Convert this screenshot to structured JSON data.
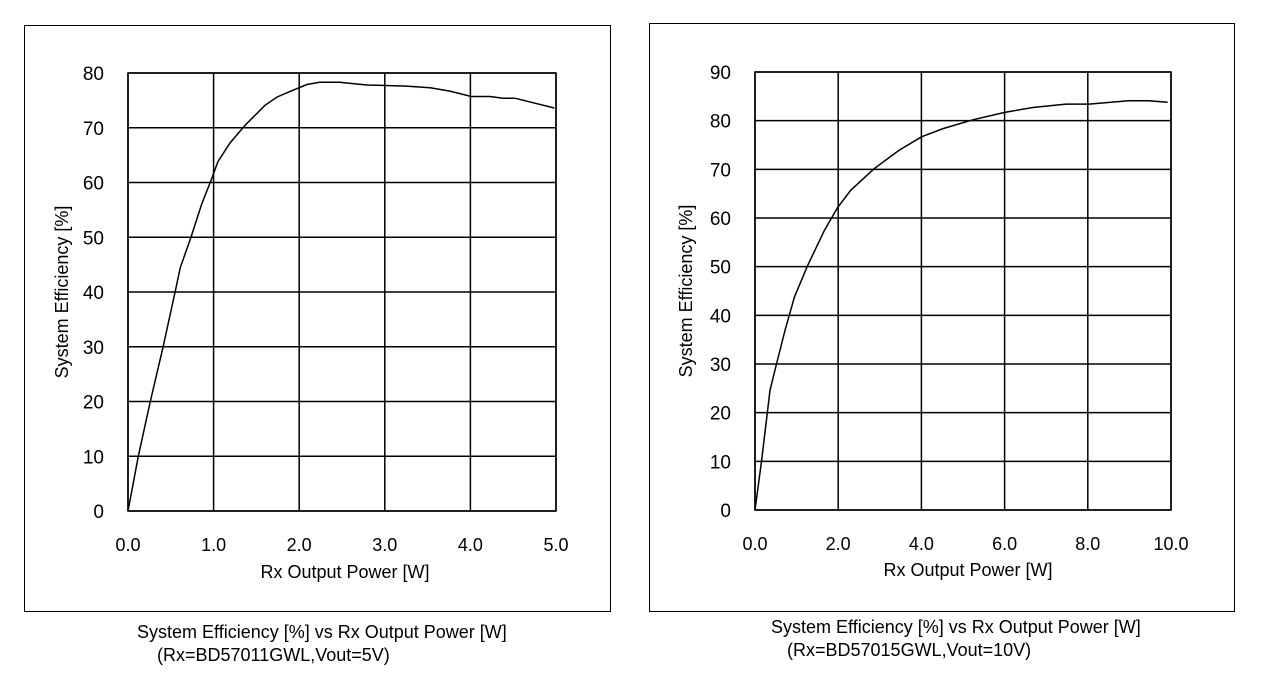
{
  "chart_data": [
    {
      "type": "line",
      "xlabel": "Rx Output Power [W]",
      "ylabel": "System Efficiency [%]",
      "xlim": [
        0,
        5
      ],
      "ylim": [
        0,
        80
      ],
      "xticks": [
        "0.0",
        "1.0",
        "2.0",
        "3.0",
        "4.0",
        "5.0"
      ],
      "yticks": [
        "0",
        "10",
        "20",
        "30",
        "40",
        "50",
        "60",
        "70",
        "80"
      ],
      "grid": true,
      "caption": "System Efficiency [%] vs Rx Output Power [W]",
      "subcaption": "(Rx=BD57011GWL,Vout=5V)",
      "series": [
        {
          "name": "Efficiency",
          "x": [
            0,
            0.12,
            0.26,
            0.41,
            0.55,
            0.61,
            0.74,
            0.86,
            0.98,
            1.05,
            1.19,
            1.37,
            1.6,
            1.74,
            1.89,
            2.09,
            2.24,
            2.47,
            2.79,
            3.25,
            3.53,
            3.76,
            4.01,
            4.23,
            4.38,
            4.52,
            4.98
          ],
          "y": [
            0,
            10,
            20,
            30,
            40,
            44.4,
            50.2,
            56,
            60.8,
            63.8,
            67.2,
            70.5,
            74.1,
            75.6,
            76.6,
            77.9,
            78.3,
            78.3,
            77.8,
            77.6,
            77.3,
            76.7,
            75.7,
            75.7,
            75.4,
            75.4,
            73.6
          ]
        }
      ]
    },
    {
      "type": "line",
      "xlabel": "Rx Output Power [W]",
      "ylabel": "System Efficiency [%]",
      "xlim": [
        0,
        10
      ],
      "ylim": [
        0,
        90
      ],
      "xticks": [
        "0.0",
        "2.0",
        "4.0",
        "6.0",
        "8.0",
        "10.0"
      ],
      "yticks": [
        "0",
        "10",
        "20",
        "30",
        "40",
        "50",
        "60",
        "70",
        "80",
        "90"
      ],
      "grid": true,
      "caption": "System Efficiency [%] vs Rx Output Power [W]",
      "subcaption": "(Rx=BD57015GWL,Vout=10V)",
      "series": [
        {
          "name": "Efficiency",
          "x": [
            0,
            0.16,
            0.36,
            0.52,
            0.72,
            0.95,
            1.27,
            1.67,
            1.99,
            2.3,
            2.86,
            3.46,
            4.01,
            4.53,
            5.25,
            6.0,
            6.68,
            7.47,
            8.03,
            8.98,
            9.46,
            9.92
          ],
          "y": [
            0,
            10.3,
            24.6,
            30.1,
            36.9,
            43.8,
            50.3,
            57.5,
            62.2,
            65.7,
            70.1,
            73.9,
            76.7,
            78.4,
            80.2,
            81.7,
            82.7,
            83.4,
            83.4,
            84.1,
            84.1,
            83.8
          ]
        }
      ]
    }
  ]
}
